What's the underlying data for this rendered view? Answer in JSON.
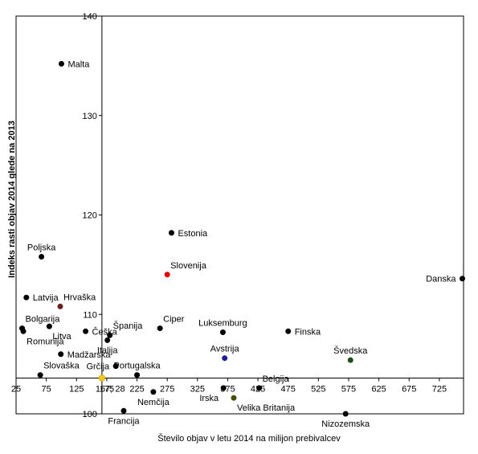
{
  "chart_data": {
    "type": "scatter",
    "xlabel": "Število objav  v letu 2014 na milijon prebivalcev",
    "ylabel": "Indeks rasti objav 2014 glede na 2013",
    "x_ticks": [
      25,
      75,
      125,
      175,
      225,
      275,
      325,
      375,
      425,
      475,
      525,
      575,
      625,
      675,
      725
    ],
    "y_ticks": [
      100,
      110,
      120,
      130,
      140
    ],
    "xlim": [
      25,
      765
    ],
    "ylim": [
      100,
      140
    ],
    "crossing": {
      "x": 167,
      "y": 103.6
    },
    "crossing_label": "167; 28",
    "grid": false,
    "legend": "none",
    "colors": {
      "default": "#000000",
      "slovenia": "#e00000",
      "avstrija": "#1f1f8f",
      "svedska": "#1e4d1e",
      "irska": "#4d4d00",
      "hrvaska": "#6b1f1f",
      "crossing": "#f5c518",
      "crossing_text": "#d4a800"
    },
    "points": [
      {
        "name": "Malta",
        "x": 100,
        "y": 135.2,
        "color": "default",
        "anchor": "e"
      },
      {
        "name": "Estonia",
        "x": 282,
        "y": 118.2,
        "color": "default",
        "anchor": "e"
      },
      {
        "name": "Slovenija",
        "x": 275,
        "y": 114.0,
        "color": "slovenia",
        "anchor": "ne"
      },
      {
        "name": "Poljska",
        "x": 67,
        "y": 115.8,
        "color": "default",
        "anchor": "n"
      },
      {
        "name": "Danska",
        "x": 763,
        "y": 113.6,
        "color": "default",
        "anchor": "w"
      },
      {
        "name": "Latvija",
        "x": 42,
        "y": 111.7,
        "color": "default",
        "anchor": "e"
      },
      {
        "name": "Hrvaška",
        "x": 98,
        "y": 110.8,
        "color": "hrvaska",
        "anchor": "ne"
      },
      {
        "name": "Bolgarija",
        "x": 35,
        "y": 108.6,
        "color": "default",
        "anchor": "ne"
      },
      {
        "name": "Romunija",
        "x": 37,
        "y": 108.3,
        "color": "default",
        "anchor": "se"
      },
      {
        "name": "Litva",
        "x": 80,
        "y": 108.8,
        "color": "default",
        "anchor": "se"
      },
      {
        "name": "Češka",
        "x": 140,
        "y": 108.3,
        "color": "default",
        "anchor": "e"
      },
      {
        "name": "Španija",
        "x": 180,
        "y": 107.9,
        "color": "default",
        "anchor": "ne"
      },
      {
        "name": "Ciper",
        "x": 263,
        "y": 108.6,
        "color": "default",
        "anchor": "ne"
      },
      {
        "name": "Italija",
        "x": 176,
        "y": 107.4,
        "color": "default",
        "anchor": "s"
      },
      {
        "name": "Madžarska",
        "x": 99,
        "y": 106.0,
        "color": "default",
        "anchor": "e"
      },
      {
        "name": "Grčija",
        "x": 190,
        "y": 104.8,
        "color": "default",
        "anchor": "w"
      },
      {
        "name": "Portugalska",
        "x": 225,
        "y": 103.9,
        "color": "default",
        "anchor": "n"
      },
      {
        "name": "Slovaška",
        "x": 65,
        "y": 103.9,
        "color": "default",
        "anchor": "ne"
      },
      {
        "name": "Luksemburg",
        "x": 367,
        "y": 108.2,
        "color": "default",
        "anchor": "n"
      },
      {
        "name": "Finska",
        "x": 475,
        "y": 108.3,
        "color": "default",
        "anchor": "e"
      },
      {
        "name": "Avstrija",
        "x": 370,
        "y": 105.6,
        "color": "avstrija",
        "anchor": "n"
      },
      {
        "name": "Švedska",
        "x": 578,
        "y": 105.4,
        "color": "svedska",
        "anchor": "n"
      },
      {
        "name": "Belgija",
        "x": 427,
        "y": 102.6,
        "color": "default",
        "anchor": "ne"
      },
      {
        "name": "Irska",
        "x": 368,
        "y": 102.6,
        "color": "default",
        "anchor": "sw"
      },
      {
        "name": "Nemčija",
        "x": 252,
        "y": 102.2,
        "color": "default",
        "anchor": "s"
      },
      {
        "name": "Velika Britanija",
        "x": 385,
        "y": 101.6,
        "color": "irska",
        "anchor": "se"
      },
      {
        "name": "Francija",
        "x": 203,
        "y": 100.3,
        "color": "default",
        "anchor": "s"
      },
      {
        "name": "Nizozemska",
        "x": 570,
        "y": 100.0,
        "color": "default",
        "anchor": "s"
      }
    ]
  }
}
